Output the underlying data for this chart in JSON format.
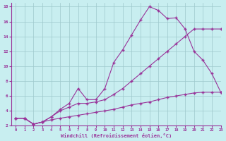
{
  "background_color": "#c8eef0",
  "line_color": "#993399",
  "marker": "+",
  "xlabel": "Windchill (Refroidissement éolien,°C)",
  "xlim": [
    -0.5,
    23
  ],
  "ylim": [
    2,
    18.5
  ],
  "xticks": [
    0,
    1,
    2,
    3,
    4,
    5,
    6,
    7,
    8,
    9,
    10,
    11,
    12,
    13,
    14,
    15,
    16,
    17,
    18,
    19,
    20,
    21,
    22,
    23
  ],
  "yticks": [
    2,
    4,
    6,
    8,
    10,
    12,
    14,
    16,
    18
  ],
  "grid_color": "#9ec8cc",
  "curve_peak_x": [
    0,
    1,
    2,
    3,
    4,
    5,
    6,
    7,
    8,
    9,
    10,
    11,
    12,
    13,
    14,
    15,
    16,
    17,
    18,
    19,
    20,
    21,
    22,
    23
  ],
  "curve_peak_y": [
    3,
    3,
    2.2,
    2.5,
    3.2,
    4.2,
    5,
    7,
    5.5,
    5.5,
    7,
    10.5,
    12.2,
    14.2,
    16.2,
    18,
    17.5,
    16.4,
    16.5,
    15,
    12,
    10.8,
    9,
    6.5
  ],
  "curve_diag_x": [
    0,
    1,
    2,
    3,
    4,
    5,
    6,
    7,
    8,
    9,
    10,
    11,
    12,
    13,
    14,
    15,
    16,
    17,
    18,
    19,
    20,
    21,
    22,
    23
  ],
  "curve_diag_y": [
    3,
    3,
    2.2,
    2.5,
    3.2,
    4,
    4.5,
    5,
    5,
    5.2,
    5.5,
    6.2,
    7,
    8,
    9,
    10,
    11,
    12,
    13,
    14,
    15,
    15,
    15,
    15
  ],
  "curve_flat_x": [
    0,
    1,
    2,
    3,
    4,
    5,
    6,
    7,
    8,
    9,
    10,
    11,
    12,
    13,
    14,
    15,
    16,
    17,
    18,
    19,
    20,
    21,
    22,
    23
  ],
  "curve_flat_y": [
    3,
    3,
    2.2,
    2.5,
    2.8,
    3.0,
    3.2,
    3.4,
    3.6,
    3.8,
    4.0,
    4.2,
    4.5,
    4.8,
    5.0,
    5.2,
    5.5,
    5.8,
    6.0,
    6.2,
    6.4,
    6.5,
    6.5,
    6.5
  ]
}
